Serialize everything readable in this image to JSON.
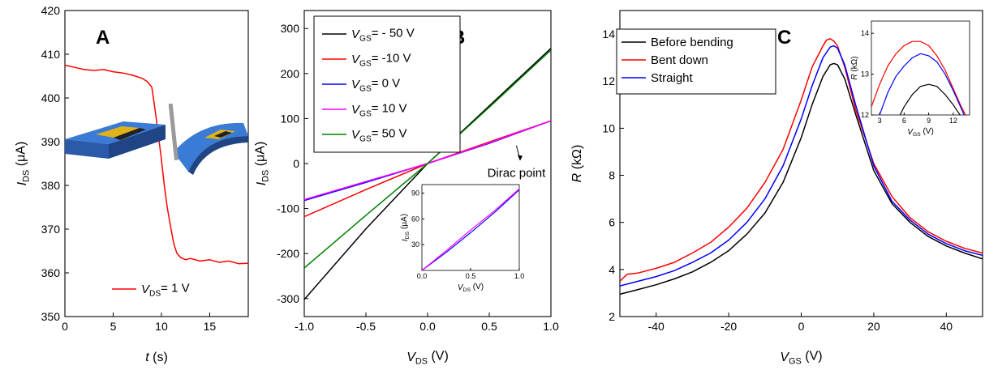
{
  "chart_data": [
    {
      "panel": "A",
      "type": "line",
      "panel_label": "A",
      "xlabel": {
        "main": "t",
        "sub": "",
        "unit": " (s)"
      },
      "ylabel": {
        "main": "I",
        "sub": "DS",
        "unit": " (μA)"
      },
      "xlim": [
        0,
        19
      ],
      "ylim": [
        350,
        420
      ],
      "xticks": [
        0,
        5,
        10,
        15
      ],
      "yticks": [
        350,
        360,
        370,
        380,
        390,
        400,
        410,
        420
      ],
      "legend": [
        {
          "main": "V",
          "sub": "DS",
          "rest": "= 1 V",
          "color": "#ff0000"
        }
      ],
      "series": [
        {
          "color": "#ff0000",
          "x": [
            0,
            1,
            2,
            3,
            4,
            5,
            6,
            7,
            8,
            8.5,
            9,
            9.3,
            9.6,
            10,
            10.3,
            10.6,
            11,
            11.3,
            11.6,
            12,
            12.5,
            13,
            14,
            15,
            16,
            17,
            18,
            19
          ],
          "y": [
            407.5,
            407,
            406.5,
            406.3,
            406.5,
            406,
            405.7,
            405.2,
            404.5,
            403.8,
            402.5,
            398,
            393,
            386,
            380,
            375,
            370,
            366.5,
            364.5,
            363.5,
            363,
            363.3,
            362.7,
            363,
            362.4,
            362.7,
            362.1,
            362.2
          ]
        }
      ]
    },
    {
      "panel": "B",
      "type": "line",
      "panel_label": "B",
      "xlabel": {
        "main": "V",
        "sub": "DS",
        "unit": " (V)"
      },
      "ylabel": {
        "main": "I",
        "sub": "DS",
        "unit": " (μA)"
      },
      "xlim": [
        -1,
        1
      ],
      "ylim": [
        -340,
        340
      ],
      "xticks": [
        -1.0,
        -0.5,
        0.0,
        0.5,
        1.0
      ],
      "xtick_labels": [
        "-1.0",
        "-0.5",
        "0.0",
        "0.5",
        "1.0"
      ],
      "yticks": [
        -300,
        -200,
        -100,
        0,
        100,
        200,
        300
      ],
      "legend": [
        {
          "main": "V",
          "sub": "GS",
          "rest": "= - 50 V",
          "color": "#000000"
        },
        {
          "main": "V",
          "sub": "GS",
          "rest": "=  -10 V",
          "color": "#ff0000"
        },
        {
          "main": "V",
          "sub": "GS",
          "rest": "=  0 V",
          "color": "#0000ff"
        },
        {
          "main": "V",
          "sub": "GS",
          "rest": "=  10 V",
          "color": "#ff00ff"
        },
        {
          "main": "V",
          "sub": "GS",
          "rest": "=  50 V",
          "color": "#008000"
        }
      ],
      "annotation": {
        "text": "Dirac point",
        "x": 0.72,
        "y": -30,
        "arrow_from": [
          0.72,
          40
        ],
        "arrow_to": [
          0.75,
          8
        ]
      },
      "series": [
        {
          "color": "#000000",
          "x": [
            -1,
            -0.5,
            0,
            0.5,
            1
          ],
          "y": [
            -302,
            -145,
            0,
            128,
            256
          ]
        },
        {
          "color": "#ff0000",
          "x": [
            -1,
            -0.5,
            0,
            0.5,
            1
          ],
          "y": [
            -118,
            -58,
            0,
            48,
            95
          ]
        },
        {
          "color": "#0000ff",
          "x": [
            -1,
            -0.5,
            0,
            0.5,
            1
          ],
          "y": [
            -82,
            -42,
            0,
            45,
            95
          ]
        },
        {
          "color": "#ff00ff",
          "x": [
            -1,
            -0.5,
            0,
            0.5,
            1
          ],
          "y": [
            -80,
            -40,
            0,
            46,
            95
          ]
        },
        {
          "color": "#008000",
          "x": [
            -1,
            -0.5,
            0,
            0.5,
            1
          ],
          "y": [
            -232,
            -115,
            0,
            125,
            252
          ]
        }
      ],
      "inset": {
        "xlabel": {
          "main": "V",
          "sub": "DS",
          "unit": " (V)"
        },
        "ylabel": {
          "main": "I",
          "sub": "DS",
          "unit": " (μA)"
        },
        "xlim": [
          0,
          1
        ],
        "ylim": [
          0,
          100
        ],
        "xticks": [
          0,
          0.5,
          1.0
        ],
        "xtick_labels": [
          "0.0",
          "0.5",
          "1.0"
        ],
        "yticks": [
          30,
          60,
          90
        ],
        "series": [
          {
            "color": "#0000ff",
            "x": [
              0,
              0.25,
              0.5,
              0.75,
              1
            ],
            "y": [
              0,
              21,
              44,
              68,
              94
            ]
          },
          {
            "color": "#ff00ff",
            "x": [
              0,
              0.25,
              0.5,
              0.75,
              1
            ],
            "y": [
              0,
              23,
              47,
              70,
              95
            ]
          }
        ]
      }
    },
    {
      "panel": "C",
      "type": "line",
      "panel_label": "C",
      "xlabel": {
        "main": "V",
        "sub": "GS",
        "unit": " (V)"
      },
      "ylabel": {
        "main": "R",
        "sub": "",
        "unit": " (kΩ)"
      },
      "xlim": [
        -50,
        50
      ],
      "ylim": [
        2,
        15
      ],
      "xticks": [
        -40,
        -20,
        0,
        20,
        40
      ],
      "yticks": [
        2,
        4,
        6,
        8,
        10,
        12,
        14
      ],
      "legend": [
        {
          "main": "Before bending",
          "sub": "",
          "rest": "",
          "color": "#000000"
        },
        {
          "main": "Bent down",
          "sub": "",
          "rest": "",
          "color": "#ff0000"
        },
        {
          "main": "Straight",
          "sub": "",
          "rest": "",
          "color": "#0000ff"
        }
      ],
      "series": [
        {
          "color": "#000000",
          "x": [
            -50,
            -45,
            -40,
            -35,
            -30,
            -25,
            -20,
            -15,
            -10,
            -5,
            0,
            3,
            6,
            8,
            9,
            10,
            12,
            15,
            20,
            25,
            30,
            35,
            40,
            45,
            50
          ],
          "y": [
            2.95,
            3.15,
            3.35,
            3.6,
            3.9,
            4.3,
            4.8,
            5.5,
            6.4,
            7.7,
            9.6,
            11.0,
            12.2,
            12.7,
            12.75,
            12.7,
            12.1,
            10.6,
            8.2,
            6.8,
            6.0,
            5.4,
            5.0,
            4.7,
            4.45
          ]
        },
        {
          "color": "#ff0000",
          "x": [
            -50,
            -48,
            -45,
            -40,
            -35,
            -30,
            -25,
            -20,
            -15,
            -10,
            -5,
            0,
            3,
            6,
            7,
            8,
            9,
            10,
            12,
            15,
            20,
            25,
            30,
            35,
            40,
            45,
            50
          ],
          "y": [
            3.5,
            3.8,
            3.85,
            4.05,
            4.3,
            4.7,
            5.15,
            5.8,
            6.6,
            7.7,
            9.1,
            11.2,
            12.6,
            13.5,
            13.75,
            13.8,
            13.7,
            13.5,
            12.6,
            10.8,
            8.5,
            7.1,
            6.2,
            5.6,
            5.2,
            4.9,
            4.7
          ]
        },
        {
          "color": "#0000ff",
          "x": [
            -50,
            -45,
            -40,
            -35,
            -30,
            -25,
            -20,
            -15,
            -10,
            -5,
            0,
            3,
            6,
            8,
            9,
            10,
            12,
            15,
            20,
            25,
            30,
            35,
            40,
            45,
            50
          ],
          "y": [
            3.3,
            3.5,
            3.7,
            3.95,
            4.3,
            4.7,
            5.25,
            6.0,
            7.0,
            8.4,
            10.4,
            11.8,
            13.0,
            13.45,
            13.5,
            13.4,
            12.7,
            11.0,
            8.4,
            6.9,
            6.1,
            5.5,
            5.1,
            4.8,
            4.6
          ]
        }
      ],
      "inset": {
        "xlabel": {
          "main": "V",
          "sub": "GS",
          "unit": " (V)"
        },
        "ylabel": {
          "main": "R",
          "sub": "",
          "unit": " (kΩ)"
        },
        "xlim": [
          2,
          14
        ],
        "ylim": [
          12,
          14.3
        ],
        "xticks": [
          3,
          6,
          9,
          12
        ],
        "xtick_labels": [
          "3",
          "6",
          "9",
          "12"
        ],
        "yticks": [
          12,
          13,
          14
        ],
        "series": [
          {
            "color": "#ff0000",
            "x": [
              2,
              3,
              4,
              5,
              6,
              7,
              8,
              9,
              10,
              11,
              12,
              13,
              14
            ],
            "y": [
              12.2,
              12.75,
              13.2,
              13.5,
              13.7,
              13.8,
              13.8,
              13.7,
              13.45,
              13.1,
              12.65,
              12.2,
              11.8
            ]
          },
          {
            "color": "#0000ff",
            "x": [
              3,
              4,
              5,
              6,
              7,
              8,
              9,
              10,
              11,
              12,
              13,
              14
            ],
            "y": [
              12.0,
              12.55,
              12.95,
              13.2,
              13.4,
              13.5,
              13.45,
              13.3,
              13.0,
              12.6,
              12.15,
              11.7
            ]
          },
          {
            "color": "#000000",
            "x": [
              5,
              6,
              7,
              8,
              9,
              10,
              11,
              12,
              13,
              13.5
            ],
            "y": [
              11.8,
              12.2,
              12.5,
              12.7,
              12.75,
              12.7,
              12.5,
              12.25,
              11.95,
              11.8
            ]
          }
        ]
      }
    }
  ]
}
